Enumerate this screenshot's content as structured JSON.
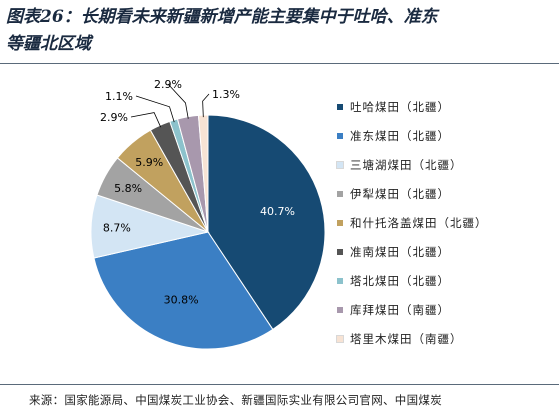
{
  "header": {
    "title_line1": "图表26：长期看未来新疆新增产能主要集中于吐哈、准东",
    "title_line2": "等疆北区域"
  },
  "source": "来源：国家能源局、中国煤炭工业协会、新疆国际实业有限公司官网、中国煤炭",
  "chart_data": {
    "type": "pie",
    "title": "",
    "start_angle_deg": 0,
    "direction": "clockwise",
    "legend_position": "right",
    "slices": [
      {
        "name": "吐哈煤田（北疆）",
        "value": 40.7,
        "label": "40.7%",
        "color": "#164a73",
        "label_color": "#ffffff"
      },
      {
        "name": "准东煤田（北疆）",
        "value": 30.8,
        "label": "30.8%",
        "color": "#3b7fc4",
        "label_color": "#000000"
      },
      {
        "name": "三塘湖煤田（北疆）",
        "value": 8.7,
        "label": "8.7%",
        "color": "#d3e5f4",
        "label_color": "#000000"
      },
      {
        "name": "伊犁煤田（北疆）",
        "value": 5.8,
        "label": "5.8%",
        "color": "#a3a3a3",
        "label_color": "#000000"
      },
      {
        "name": "和什托洛盖煤田（北疆）",
        "value": 5.9,
        "label": "5.9%",
        "color": "#c1a15f",
        "label_color": "#000000"
      },
      {
        "name": "准南煤田（北疆）",
        "value": 2.9,
        "label": "2.9%",
        "color": "#555555",
        "label_color": "#000000"
      },
      {
        "name": "塔北煤田（北疆）",
        "value": 1.1,
        "label": "1.1%",
        "color": "#8cc2cc",
        "label_color": "#000000"
      },
      {
        "name": "库拜煤田（南疆）",
        "value": 2.9,
        "label": "2.9%",
        "color": "#a898ad",
        "label_color": "#000000"
      },
      {
        "name": "塔里木煤田（南疆）",
        "value": 1.3,
        "label": "1.3%",
        "color": "#f7e3d4",
        "label_color": "#000000"
      }
    ]
  }
}
